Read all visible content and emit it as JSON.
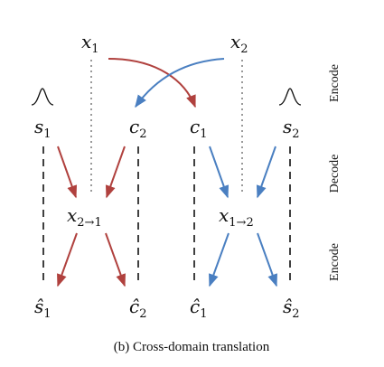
{
  "diagram": {
    "caption": "(b) Cross-domain translation",
    "stage_labels": {
      "top": "Encode",
      "middle": "Decode",
      "bottom": "Encode"
    },
    "inputs": {
      "x1": "x",
      "x1_sub": "1",
      "x2": "x",
      "x2_sub": "2"
    },
    "latents": {
      "s1": "s",
      "s1_sub": "1",
      "c2": "c",
      "c2_sub": "2",
      "c1": "c",
      "c1_sub": "1",
      "s2": "s",
      "s2_sub": "2"
    },
    "translations": {
      "x21": "x",
      "x21_sub": "2→1",
      "x12": "x",
      "x12_sub": "1→2"
    },
    "reconstructions": {
      "s1_hat": "ŝ",
      "s1_hat_sub": "1",
      "c2_hat": "ĉ",
      "c2_hat_sub": "2",
      "c1_hat": "ĉ",
      "c1_hat_sub": "1",
      "s2_hat": "ŝ",
      "s2_hat_sub": "2"
    },
    "colors": {
      "red": "#b0413e",
      "blue": "#4a7fc1",
      "dashed": "#111111",
      "dotted": "#9a9a9a"
    },
    "prior_icons": [
      "gaussian-prior-icon",
      "gaussian-prior-icon"
    ]
  }
}
